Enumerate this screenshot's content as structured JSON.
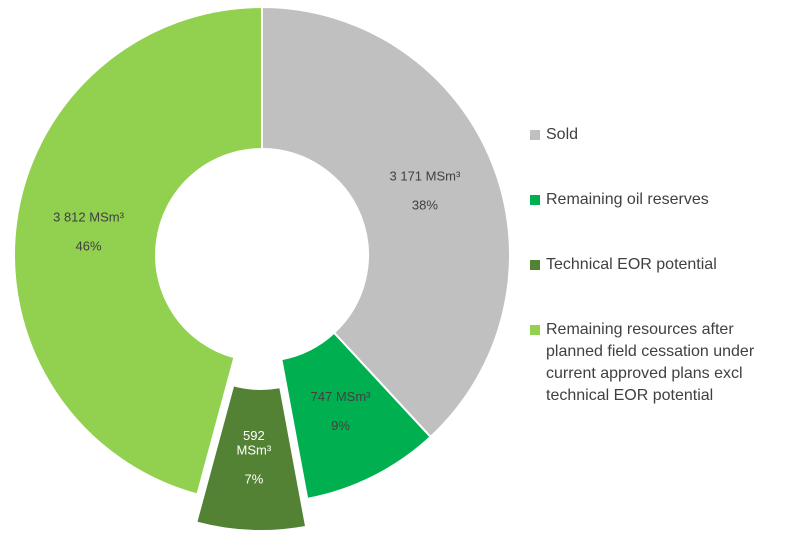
{
  "chart_data": {
    "type": "pie",
    "variant": "donut",
    "title": "",
    "slices": [
      {
        "name": "Sold",
        "value": 3171,
        "value_label": "3 171 MSm³",
        "percent_label": "38%",
        "color": "#c0c0c0",
        "label_color": "#404040",
        "exploded": false
      },
      {
        "name": "Remaining oil reserves",
        "value": 747,
        "value_label": "747 MSm³",
        "percent_label": "9%",
        "color": "#00b050",
        "label_color": "#404040",
        "exploded": false
      },
      {
        "name": "Technical EOR potential",
        "value": 592,
        "value_label": "592 MSm³",
        "percent_label": "7%",
        "color": "#548235",
        "label_color": "#ffffff",
        "exploded": true
      },
      {
        "name": "Remaining resources after planned field cessation under current approved plans excl technical EOR potential",
        "value": 3812,
        "value_label": "3 812 MSm³",
        "percent_label": "46%",
        "color": "#92d050",
        "label_color": "#404040",
        "exploded": false
      }
    ],
    "legend_position": "right"
  }
}
